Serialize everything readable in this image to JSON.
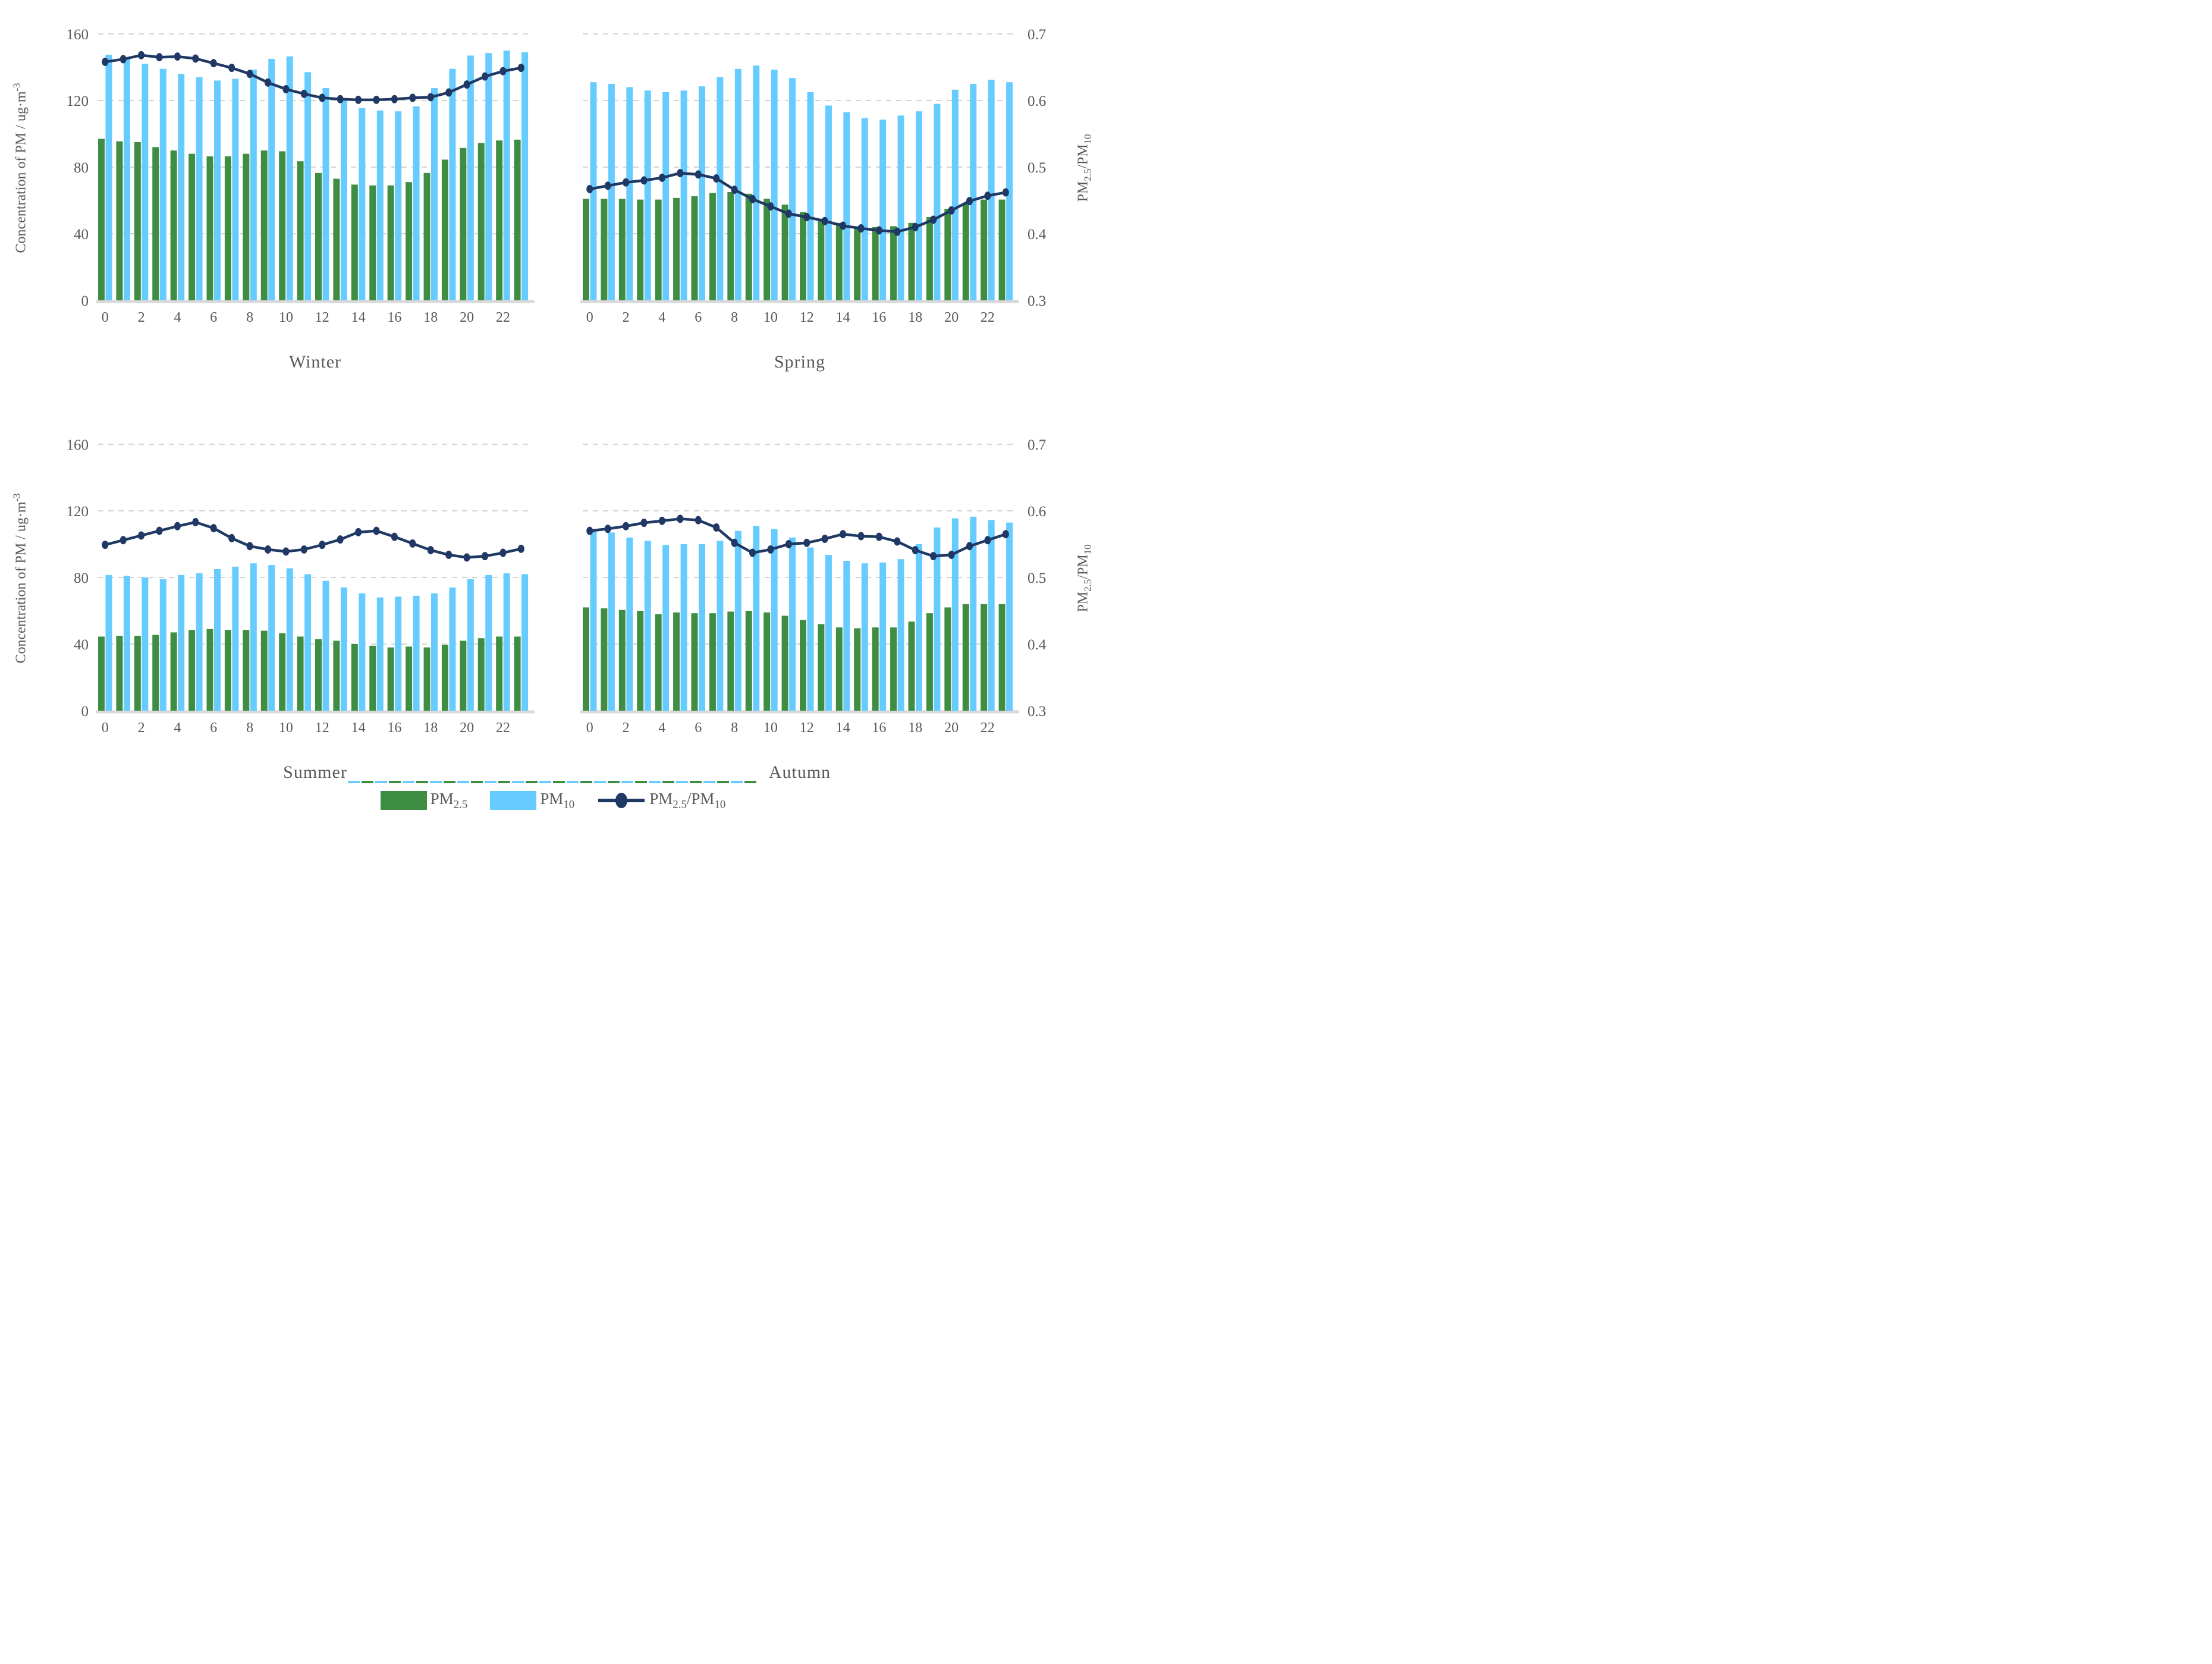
{
  "figure_title": "",
  "axes": {
    "left_label_text": "Concentration of PM / ug·m",
    "left_label_sup": "-3",
    "right_label": "PM2.5/PM10",
    "left_ticks": [
      "160",
      "120",
      "80",
      "40",
      "0"
    ],
    "left_tick_values": [
      160,
      120,
      80,
      40,
      0
    ],
    "right_ticks": [
      "0.7",
      "0.6",
      "0.5",
      "0.4",
      "0.3"
    ],
    "right_tick_values": [
      0.7,
      0.6,
      0.5,
      0.4,
      0.3
    ],
    "x_tick_labels": [
      "0",
      "2",
      "4",
      "6",
      "8",
      "10",
      "12",
      "14",
      "16",
      "18",
      "20",
      "22"
    ],
    "x_tick_values": [
      0,
      2,
      4,
      6,
      8,
      10,
      12,
      14,
      16,
      18,
      20,
      22
    ]
  },
  "colors": {
    "pm25_green": "#3E8D42",
    "pm10_blue": "#66CCFF",
    "ratio_navy": "#1F3864",
    "gridline": "#D4D4D4",
    "axis_line": "#D9D9D9",
    "text_gray": "#595959"
  },
  "legend": {
    "items": [
      {
        "label": "PM2.5",
        "type": "swatch",
        "color": "#3E8D42"
      },
      {
        "label": "PM10",
        "type": "swatch",
        "color": "#66CCFF"
      },
      {
        "label": "PM2.5/PM10",
        "type": "line-marker",
        "color": "#1F3864"
      }
    ]
  },
  "chart_data": [
    {
      "type": "bar+line",
      "season": "Winter",
      "axis_side": "left",
      "x": [
        0,
        1,
        2,
        3,
        4,
        5,
        6,
        7,
        8,
        9,
        10,
        11,
        12,
        13,
        14,
        15,
        16,
        17,
        18,
        19,
        20,
        21,
        22,
        23
      ],
      "ylim_left": [
        0,
        160
      ],
      "ylim_right": [
        0.3,
        0.7
      ],
      "grid": true,
      "series": [
        {
          "name": "PM2.5",
          "type": "bar",
          "axis": "left",
          "values": [
            97,
            95.5,
            95,
            92,
            90,
            88,
            86.5,
            86.5,
            88,
            90,
            89.5,
            83.5,
            76.5,
            73,
            69.5,
            69,
            69,
            71,
            76.5,
            84.5,
            91.5,
            94.5,
            96,
            96.5
          ]
        },
        {
          "name": "PM10",
          "type": "bar",
          "axis": "left",
          "values": [
            147.5,
            146,
            142,
            139,
            136,
            134,
            132,
            133,
            138.5,
            145,
            146.5,
            137,
            127.5,
            121,
            115.5,
            114,
            113.5,
            116.5,
            127.5,
            139,
            147,
            148.5,
            150,
            149
          ]
        },
        {
          "name": "PM2.5/PM10",
          "type": "line",
          "axis": "right",
          "values": [
            0.658,
            0.662,
            0.668,
            0.665,
            0.666,
            0.663,
            0.656,
            0.649,
            0.64,
            0.627,
            0.617,
            0.61,
            0.604,
            0.602,
            0.601,
            0.601,
            0.602,
            0.604,
            0.605,
            0.612,
            0.624,
            0.636,
            0.644,
            0.649
          ]
        }
      ]
    },
    {
      "type": "bar+line",
      "season": "Spring",
      "axis_side": "right",
      "x": [
        0,
        1,
        2,
        3,
        4,
        5,
        6,
        7,
        8,
        9,
        10,
        11,
        12,
        13,
        14,
        15,
        16,
        17,
        18,
        19,
        20,
        21,
        22,
        23
      ],
      "ylim_left": [
        0,
        160
      ],
      "ylim_right": [
        0.3,
        0.7
      ],
      "grid": true,
      "series": [
        {
          "name": "PM2.5",
          "type": "bar",
          "axis": "left",
          "values": [
            61,
            61,
            61,
            60.5,
            60.5,
            61.5,
            62.5,
            64.5,
            65,
            64,
            61,
            57.5,
            53,
            49,
            46.5,
            44.5,
            44,
            44.5,
            46.5,
            50,
            55,
            58.5,
            60.5,
            60.5
          ]
        },
        {
          "name": "PM10",
          "type": "bar",
          "axis": "left",
          "values": [
            131,
            130,
            128,
            126,
            125,
            126,
            128.5,
            134,
            139,
            141,
            138.5,
            133.5,
            125,
            117,
            113,
            109.5,
            108.5,
            111,
            113.5,
            118,
            126.5,
            130,
            132.5,
            131
          ]
        },
        {
          "name": "PM2.5/PM10",
          "type": "line",
          "axis": "right",
          "values": [
            0.467,
            0.472,
            0.477,
            0.48,
            0.484,
            0.491,
            0.489,
            0.483,
            0.466,
            0.452,
            0.441,
            0.43,
            0.425,
            0.419,
            0.412,
            0.408,
            0.405,
            0.403,
            0.41,
            0.421,
            0.435,
            0.449,
            0.457,
            0.462
          ]
        }
      ]
    },
    {
      "type": "bar+line",
      "season": "Summer",
      "axis_side": "left",
      "x": [
        0,
        1,
        2,
        3,
        4,
        5,
        6,
        7,
        8,
        9,
        10,
        11,
        12,
        13,
        14,
        15,
        16,
        17,
        18,
        19,
        20,
        21,
        22,
        23
      ],
      "ylim_left": [
        0,
        160
      ],
      "ylim_right": [
        0.3,
        0.7
      ],
      "grid": true,
      "series": [
        {
          "name": "PM2.5",
          "type": "bar",
          "axis": "left",
          "values": [
            44.5,
            45,
            45,
            45.5,
            47,
            48.5,
            49,
            48.5,
            48.5,
            48,
            46.5,
            44.5,
            43,
            42,
            40,
            39,
            38,
            38.5,
            38,
            39.5,
            42,
            43.5,
            44.5,
            44.5
          ]
        },
        {
          "name": "PM10",
          "type": "bar",
          "axis": "left",
          "values": [
            81.5,
            81,
            80,
            79,
            81.5,
            82.5,
            85,
            86.5,
            88.5,
            87.5,
            85.5,
            82,
            78,
            74,
            70.5,
            68,
            68.5,
            69,
            70.5,
            74,
            79,
            81.5,
            82.5,
            82
          ]
        },
        {
          "name": "PM2.5/PM10",
          "type": "line",
          "axis": "right",
          "values": [
            0.549,
            0.556,
            0.563,
            0.57,
            0.577,
            0.583,
            0.574,
            0.559,
            0.547,
            0.542,
            0.539,
            0.542,
            0.549,
            0.557,
            0.568,
            0.57,
            0.561,
            0.551,
            0.541,
            0.534,
            0.53,
            0.532,
            0.537,
            0.543
          ]
        }
      ]
    },
    {
      "type": "bar+line",
      "season": "Autumn",
      "axis_side": "right",
      "x": [
        0,
        1,
        2,
        3,
        4,
        5,
        6,
        7,
        8,
        9,
        10,
        11,
        12,
        13,
        14,
        15,
        16,
        17,
        18,
        19,
        20,
        21,
        22,
        23
      ],
      "ylim_left": [
        0,
        160
      ],
      "ylim_right": [
        0.3,
        0.7
      ],
      "grid": true,
      "series": [
        {
          "name": "PM2.5",
          "type": "bar",
          "axis": "left",
          "values": [
            62,
            61.5,
            60.5,
            60,
            58,
            59,
            58.5,
            58.5,
            59.5,
            60,
            59,
            57,
            54.5,
            52,
            50,
            49.5,
            50,
            50,
            53.5,
            58.5,
            62,
            64,
            64,
            64
          ]
        },
        {
          "name": "PM10",
          "type": "bar",
          "axis": "left",
          "values": [
            108,
            107,
            104,
            102,
            99.5,
            100,
            100,
            102,
            108,
            111,
            109,
            104,
            98,
            93.5,
            90,
            88.5,
            89,
            91,
            100,
            110,
            115.5,
            116.5,
            114.5,
            113
          ]
        },
        {
          "name": "PM2.5/PM10",
          "type": "line",
          "axis": "right",
          "values": [
            0.57,
            0.573,
            0.577,
            0.582,
            0.585,
            0.588,
            0.586,
            0.575,
            0.552,
            0.537,
            0.542,
            0.55,
            0.552,
            0.558,
            0.565,
            0.562,
            0.561,
            0.554,
            0.541,
            0.532,
            0.534,
            0.547,
            0.556,
            0.565
          ]
        }
      ]
    }
  ]
}
